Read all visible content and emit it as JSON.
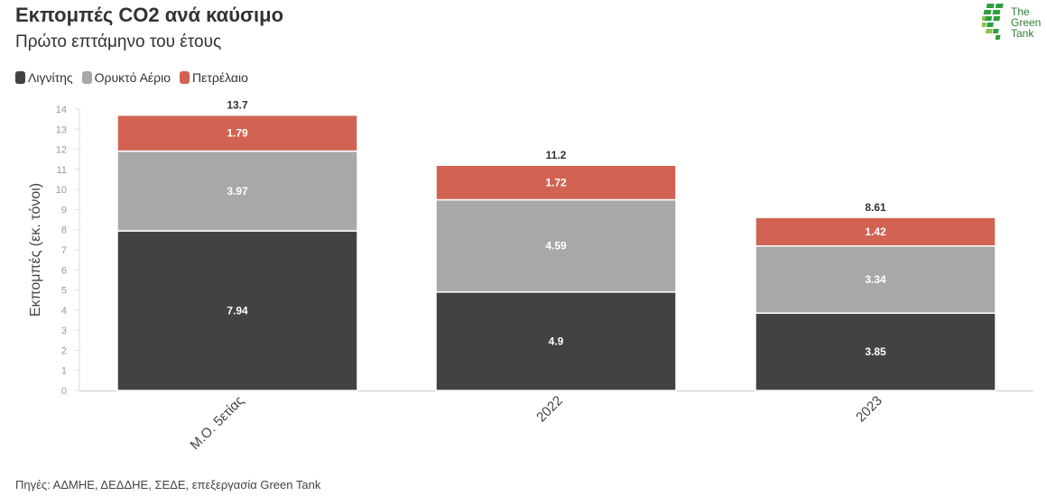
{
  "header": {
    "title": "Εκπομπές CO2 ανά καύσιμο",
    "subtitle": "Πρώτο επτάμηνο του έτους"
  },
  "logo": {
    "line1": "The",
    "line2": "Green",
    "line3": "Tank"
  },
  "footer": {
    "source": "Πηγές: ΑΔΜΗΕ, ΔΕΔΔΗΕ, ΣΕΔΕ, επεξεργασία Green Tank"
  },
  "chart_data": {
    "type": "bar",
    "stacked": true,
    "title": "Εκπομπές CO2 ανά καύσιμο",
    "subtitle": "Πρώτο επτάμηνο του έτους",
    "xlabel": "",
    "ylabel": "Εκπομπές (εκ. τόνοι)",
    "ylim": [
      0,
      14
    ],
    "yticks": [
      0,
      1,
      2,
      3,
      4,
      5,
      6,
      7,
      8,
      9,
      10,
      11,
      12,
      13,
      14
    ],
    "grid": false,
    "legend_position": "top-left",
    "categories": [
      "Μ.Ο. 5ετίας",
      "2022",
      "2023"
    ],
    "series": [
      {
        "name": "Λιγνίτης",
        "color": "#424242",
        "values": [
          7.94,
          4.9,
          3.85
        ]
      },
      {
        "name": "Ορυκτό Αέριο",
        "color": "#a8a8a8",
        "values": [
          3.97,
          4.59,
          3.34
        ]
      },
      {
        "name": "Πετρέλαιο",
        "color": "#d26352",
        "values": [
          1.79,
          1.72,
          1.42
        ]
      }
    ],
    "totals": [
      "13.7",
      "11.2",
      "8.61"
    ]
  }
}
